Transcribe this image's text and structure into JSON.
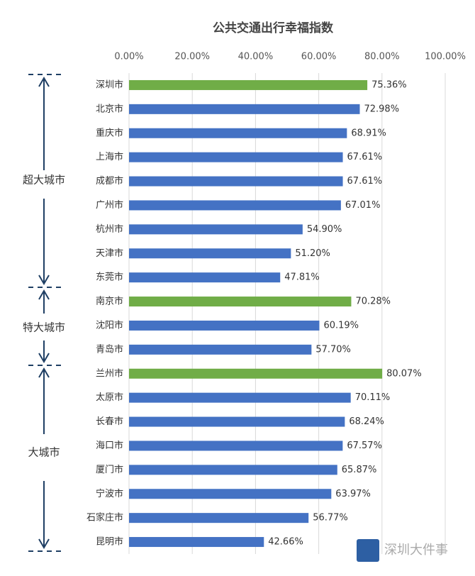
{
  "chart_data": {
    "type": "hbar",
    "title": "公共交通出行幸福指数",
    "categories": [
      "深圳市",
      "北京市",
      "重庆市",
      "上海市",
      "成都市",
      "广州市",
      "杭州市",
      "天津市",
      "东莞市",
      "南京市",
      "沈阳市",
      "青岛市",
      "兰州市",
      "太原市",
      "长春市",
      "海口市",
      "厦门市",
      "宁波市",
      "石家庄市",
      "昆明市"
    ],
    "values": [
      75.36,
      72.98,
      68.91,
      67.61,
      67.61,
      67.01,
      54.9,
      51.2,
      47.81,
      70.28,
      60.19,
      57.7,
      80.07,
      70.11,
      68.24,
      67.57,
      65.87,
      63.97,
      56.77,
      42.66
    ],
    "value_labels": [
      "75.36%",
      "72.98%",
      "68.91%",
      "67.61%",
      "67.61%",
      "67.01%",
      "54.90%",
      "51.20%",
      "47.81%",
      "70.28%",
      "60.19%",
      "57.70%",
      "80.07%",
      "70.11%",
      "68.24%",
      "67.57%",
      "65.87%",
      "63.97%",
      "56.77%",
      "42.66%"
    ],
    "colors": [
      "#70ad47",
      "#4472c4",
      "#4472c4",
      "#4472c4",
      "#4472c4",
      "#4472c4",
      "#4472c4",
      "#4472c4",
      "#4472c4",
      "#70ad47",
      "#4472c4",
      "#4472c4",
      "#70ad47",
      "#4472c4",
      "#4472c4",
      "#4472c4",
      "#4472c4",
      "#4472c4",
      "#4472c4",
      "#4472c4"
    ],
    "xlim": [
      0,
      100
    ],
    "xticks": [
      {
        "value": 0,
        "label": "0.00%"
      },
      {
        "value": 20,
        "label": "20.00%"
      },
      {
        "value": 40,
        "label": "40.00%"
      },
      {
        "value": 60,
        "label": "60.00%"
      },
      {
        "value": 80,
        "label": "80.00%"
      },
      {
        "value": 100,
        "label": "100.00%"
      }
    ],
    "grid": true,
    "annotations": [
      "超大城市",
      "特大城市",
      "大城市"
    ],
    "watermark": "深圳大件事"
  }
}
